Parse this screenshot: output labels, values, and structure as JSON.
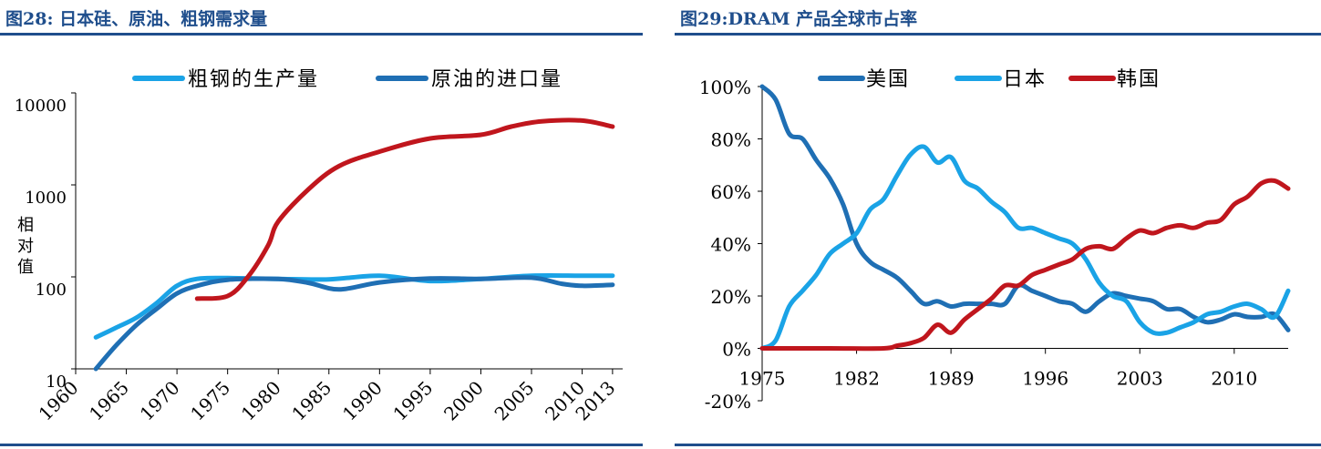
{
  "left": {
    "title": "图28: 日本硅、原油、粗钢需求量"
  },
  "right": {
    "title": "图29:DRAM 产品全球市占率"
  },
  "chart_data": [
    {
      "type": "line",
      "ylabel": "相对值",
      "yscale": "log",
      "ylim": [
        10,
        10000
      ],
      "xlim": [
        1960,
        2014
      ],
      "yticks": [
        "10",
        "100",
        "1000",
        "10000"
      ],
      "xticks": [
        "1960",
        "1965",
        "1970",
        "1975",
        "1980",
        "1985",
        "1990",
        "1995",
        "2000",
        "2005",
        "2010",
        "2013"
      ],
      "legend_position": "top",
      "series": [
        {
          "name": "粗钢的生产量",
          "color": "#1aa3e6",
          "in_legend": true,
          "points": [
            [
              1962,
              22
            ],
            [
              1964,
              28
            ],
            [
              1966,
              36
            ],
            [
              1968,
              52
            ],
            [
              1970,
              80
            ],
            [
              1972,
              95
            ],
            [
              1975,
              97
            ],
            [
              1980,
              95
            ],
            [
              1985,
              94
            ],
            [
              1990,
              103
            ],
            [
              1995,
              90
            ],
            [
              2000,
              95
            ],
            [
              2005,
              103
            ],
            [
              2010,
              103
            ],
            [
              2013,
              103
            ]
          ]
        },
        {
          "name": "原油的进口量",
          "color": "#1f6fb4",
          "in_legend": true,
          "points": [
            [
              1962,
              10
            ],
            [
              1964,
              18
            ],
            [
              1966,
              30
            ],
            [
              1968,
              45
            ],
            [
              1970,
              66
            ],
            [
              1972,
              80
            ],
            [
              1975,
              93
            ],
            [
              1980,
              95
            ],
            [
              1983,
              86
            ],
            [
              1986,
              73
            ],
            [
              1990,
              87
            ],
            [
              1995,
              96
            ],
            [
              2000,
              95
            ],
            [
              2005,
              98
            ],
            [
              2008,
              84
            ],
            [
              2010,
              80
            ],
            [
              2013,
              82
            ]
          ]
        },
        {
          "name": "",
          "color": "#c0161d",
          "in_legend": false,
          "points": [
            [
              1972,
              58
            ],
            [
              1975,
              62
            ],
            [
              1977,
              100
            ],
            [
              1979,
              220
            ],
            [
              1980,
              400
            ],
            [
              1983,
              900
            ],
            [
              1986,
              1600
            ],
            [
              1990,
              2300
            ],
            [
              1995,
              3200
            ],
            [
              2000,
              3500
            ],
            [
              2003,
              4300
            ],
            [
              2006,
              4900
            ],
            [
              2010,
              5000
            ],
            [
              2013,
              4300
            ]
          ]
        }
      ]
    },
    {
      "type": "line",
      "ylim": [
        -20,
        100
      ],
      "xlim": [
        1975,
        2014
      ],
      "yticks": [
        "-20%",
        "0%",
        "20%",
        "40%",
        "60%",
        "80%",
        "100%"
      ],
      "xticks": [
        "1975",
        "1982",
        "1989",
        "1996",
        "2003",
        "2010"
      ],
      "legend_position": "top",
      "series": [
        {
          "name": "美国",
          "color": "#1f6fb4",
          "points": [
            [
              1975,
              100
            ],
            [
              1976,
              95
            ],
            [
              1977,
              82
            ],
            [
              1978,
              80
            ],
            [
              1979,
              72
            ],
            [
              1980,
              65
            ],
            [
              1981,
              55
            ],
            [
              1982,
              40
            ],
            [
              1983,
              33
            ],
            [
              1984,
              30
            ],
            [
              1985,
              27
            ],
            [
              1986,
              22
            ],
            [
              1987,
              17
            ],
            [
              1988,
              18
            ],
            [
              1989,
              16
            ],
            [
              1990,
              17
            ],
            [
              1991,
              17
            ],
            [
              1992,
              17
            ],
            [
              1993,
              17
            ],
            [
              1994,
              24
            ],
            [
              1995,
              22
            ],
            [
              1996,
              20
            ],
            [
              1997,
              18
            ],
            [
              1998,
              17
            ],
            [
              1999,
              14
            ],
            [
              2000,
              18
            ],
            [
              2001,
              21
            ],
            [
              2002,
              20
            ],
            [
              2003,
              19
            ],
            [
              2004,
              18
            ],
            [
              2005,
              15
            ],
            [
              2006,
              15
            ],
            [
              2007,
              12
            ],
            [
              2008,
              10
            ],
            [
              2009,
              11
            ],
            [
              2010,
              13
            ],
            [
              2011,
              12
            ],
            [
              2012,
              12
            ],
            [
              2013,
              13
            ],
            [
              2014,
              7
            ]
          ]
        },
        {
          "name": "日本",
          "color": "#1aa3e6",
          "points": [
            [
              1975,
              0
            ],
            [
              1976,
              3
            ],
            [
              1977,
              16
            ],
            [
              1978,
              22
            ],
            [
              1979,
              28
            ],
            [
              1980,
              36
            ],
            [
              1981,
              40
            ],
            [
              1982,
              44
            ],
            [
              1983,
              53
            ],
            [
              1984,
              57
            ],
            [
              1985,
              66
            ],
            [
              1986,
              74
            ],
            [
              1987,
              77
            ],
            [
              1988,
              71
            ],
            [
              1989,
              73
            ],
            [
              1990,
              64
            ],
            [
              1991,
              61
            ],
            [
              1992,
              56
            ],
            [
              1993,
              52
            ],
            [
              1994,
              46
            ],
            [
              1995,
              46
            ],
            [
              1996,
              44
            ],
            [
              1997,
              42
            ],
            [
              1998,
              40
            ],
            [
              1999,
              34
            ],
            [
              2000,
              25
            ],
            [
              2001,
              20
            ],
            [
              2002,
              18
            ],
            [
              2003,
              10
            ],
            [
              2004,
              6
            ],
            [
              2005,
              6
            ],
            [
              2006,
              8
            ],
            [
              2007,
              10
            ],
            [
              2008,
              13
            ],
            [
              2009,
              14
            ],
            [
              2010,
              16
            ],
            [
              2011,
              17
            ],
            [
              2012,
              15
            ],
            [
              2013,
              12
            ],
            [
              2014,
              22
            ]
          ]
        },
        {
          "name": "韩国",
          "color": "#c0161d",
          "points": [
            [
              1975,
              0
            ],
            [
              1980,
              0
            ],
            [
              1984,
              0
            ],
            [
              1985,
              1
            ],
            [
              1986,
              2
            ],
            [
              1987,
              4
            ],
            [
              1988,
              9
            ],
            [
              1989,
              6
            ],
            [
              1990,
              11
            ],
            [
              1991,
              15
            ],
            [
              1992,
              19
            ],
            [
              1993,
              24
            ],
            [
              1994,
              24
            ],
            [
              1995,
              28
            ],
            [
              1996,
              30
            ],
            [
              1997,
              32
            ],
            [
              1998,
              34
            ],
            [
              1999,
              38
            ],
            [
              2000,
              39
            ],
            [
              2001,
              38
            ],
            [
              2002,
              42
            ],
            [
              2003,
              45
            ],
            [
              2004,
              44
            ],
            [
              2005,
              46
            ],
            [
              2006,
              47
            ],
            [
              2007,
              46
            ],
            [
              2008,
              48
            ],
            [
              2009,
              49
            ],
            [
              2010,
              55
            ],
            [
              2011,
              58
            ],
            [
              2012,
              63
            ],
            [
              2013,
              64
            ],
            [
              2014,
              61
            ]
          ]
        }
      ]
    }
  ]
}
